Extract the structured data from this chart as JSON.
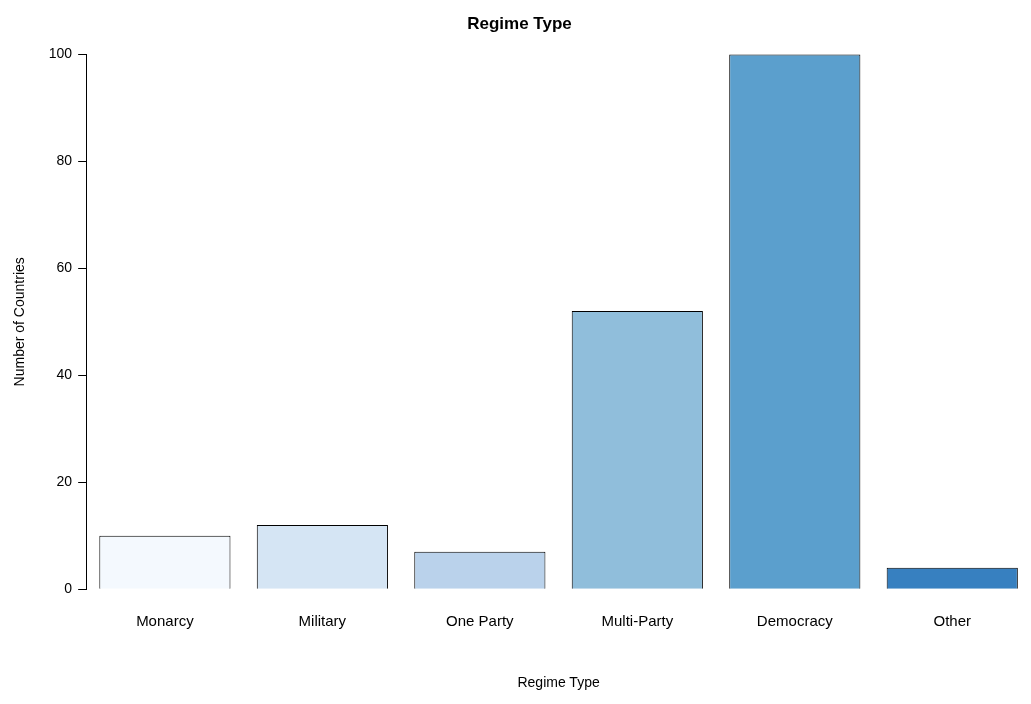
{
  "chart_data": {
    "type": "bar",
    "title": "Regime Type",
    "xlabel": "Regime Type",
    "ylabel": "Number of Countries",
    "categories": [
      "Monarcy",
      "Military",
      "One Party",
      "Multi-Party",
      "Democracy",
      "Other"
    ],
    "values": [
      10,
      12,
      7,
      52,
      100,
      4
    ],
    "colors": [
      "#f4f9fe",
      "#d5e5f4",
      "#bad2eb",
      "#90bedb",
      "#5b9fcd",
      "#3780c0"
    ],
    "ylim": [
      0,
      100
    ],
    "yticks": [
      0,
      20,
      40,
      60,
      80,
      100
    ],
    "grid": false,
    "legend": false
  }
}
